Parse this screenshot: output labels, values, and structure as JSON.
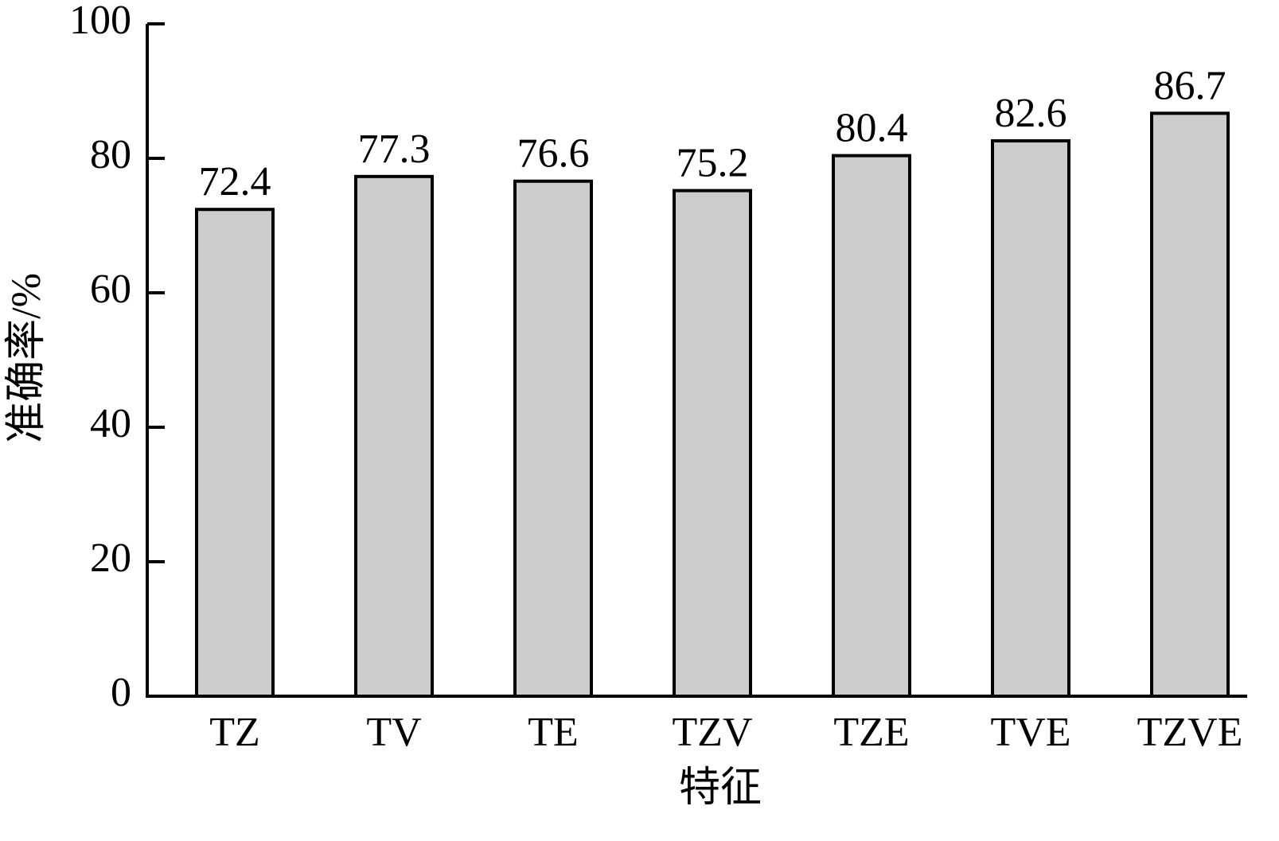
{
  "chart_data": {
    "type": "bar",
    "categories": [
      "TZ",
      "TV",
      "TE",
      "TZV",
      "TZE",
      "TVE",
      "TZVE"
    ],
    "values": [
      72.4,
      77.3,
      76.6,
      75.2,
      80.4,
      82.6,
      86.7
    ],
    "color": "#cccccc",
    "xlabel": "特征",
    "ylabel": "准确率/%",
    "ylim": [
      0,
      100
    ],
    "yticks": [
      0,
      20,
      40,
      60,
      80,
      100
    ],
    "grid": false
  }
}
